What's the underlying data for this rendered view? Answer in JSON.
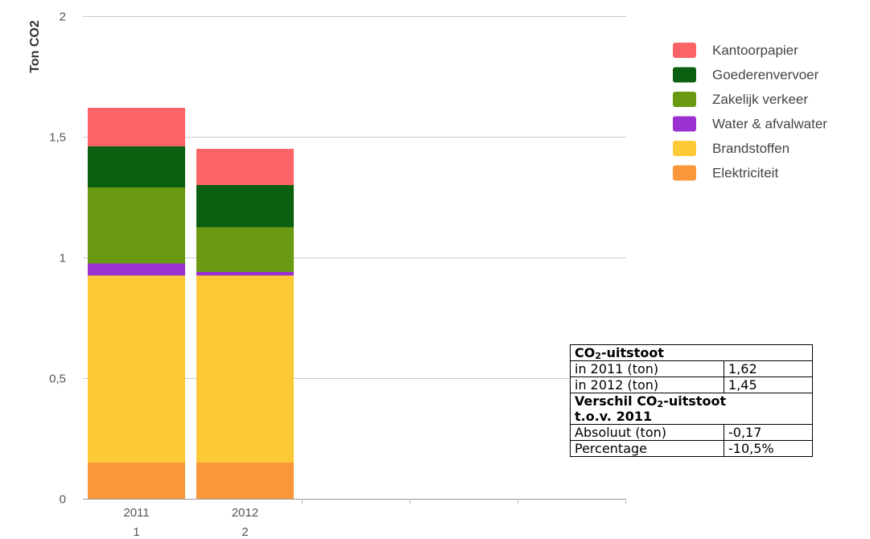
{
  "chart_data": {
    "type": "bar",
    "stacked": true,
    "categories": [
      "2011",
      "2012"
    ],
    "category_sublabels": [
      "1",
      "2"
    ],
    "ylabel": "Ton CO2",
    "ylim": [
      0,
      2
    ],
    "yticks": [
      0,
      0.5,
      1,
      1.5,
      2
    ],
    "ytick_labels": [
      "0",
      "0,5",
      "1",
      "1,5",
      "2"
    ],
    "grid": true,
    "legend_position": "right",
    "series": [
      {
        "name": "Elektriciteit",
        "color": "#f9973a",
        "values": [
          0.15,
          0.15
        ]
      },
      {
        "name": "Brandstoffen",
        "color": "#fdc936",
        "values": [
          0.775,
          0.775
        ]
      },
      {
        "name": "Water & afvalwater",
        "color": "#9b30d0",
        "values": [
          0.05,
          0.015
        ]
      },
      {
        "name": "Zakelijk verkeer",
        "color": "#6a9a12",
        "values": [
          0.315,
          0.185
        ]
      },
      {
        "name": "Goederenvervoer",
        "color": "#0a6010",
        "values": [
          0.17,
          0.175
        ]
      },
      {
        "name": "Kantoorpapier",
        "color": "#fb6467",
        "values": [
          0.16,
          0.15
        ]
      }
    ]
  },
  "summary_table": {
    "header": "CO",
    "header_sub": "2",
    "header_suffix": "-uitstoot",
    "row_2011_label": "in 2011 (ton)",
    "row_2011_value": "1,62",
    "row_2012_label": "in 2012 (ton)",
    "row_2012_value": "1,45",
    "diff_header_a": "Verschil CO",
    "diff_header_sub": "2",
    "diff_header_b": "-uitstoot",
    "diff_header_line2": "t.o.v. 2011",
    "abs_label": "Absoluut (ton)",
    "abs_value": "-0,17",
    "pct_label": "Percentage",
    "pct_value": "-10,5%"
  }
}
